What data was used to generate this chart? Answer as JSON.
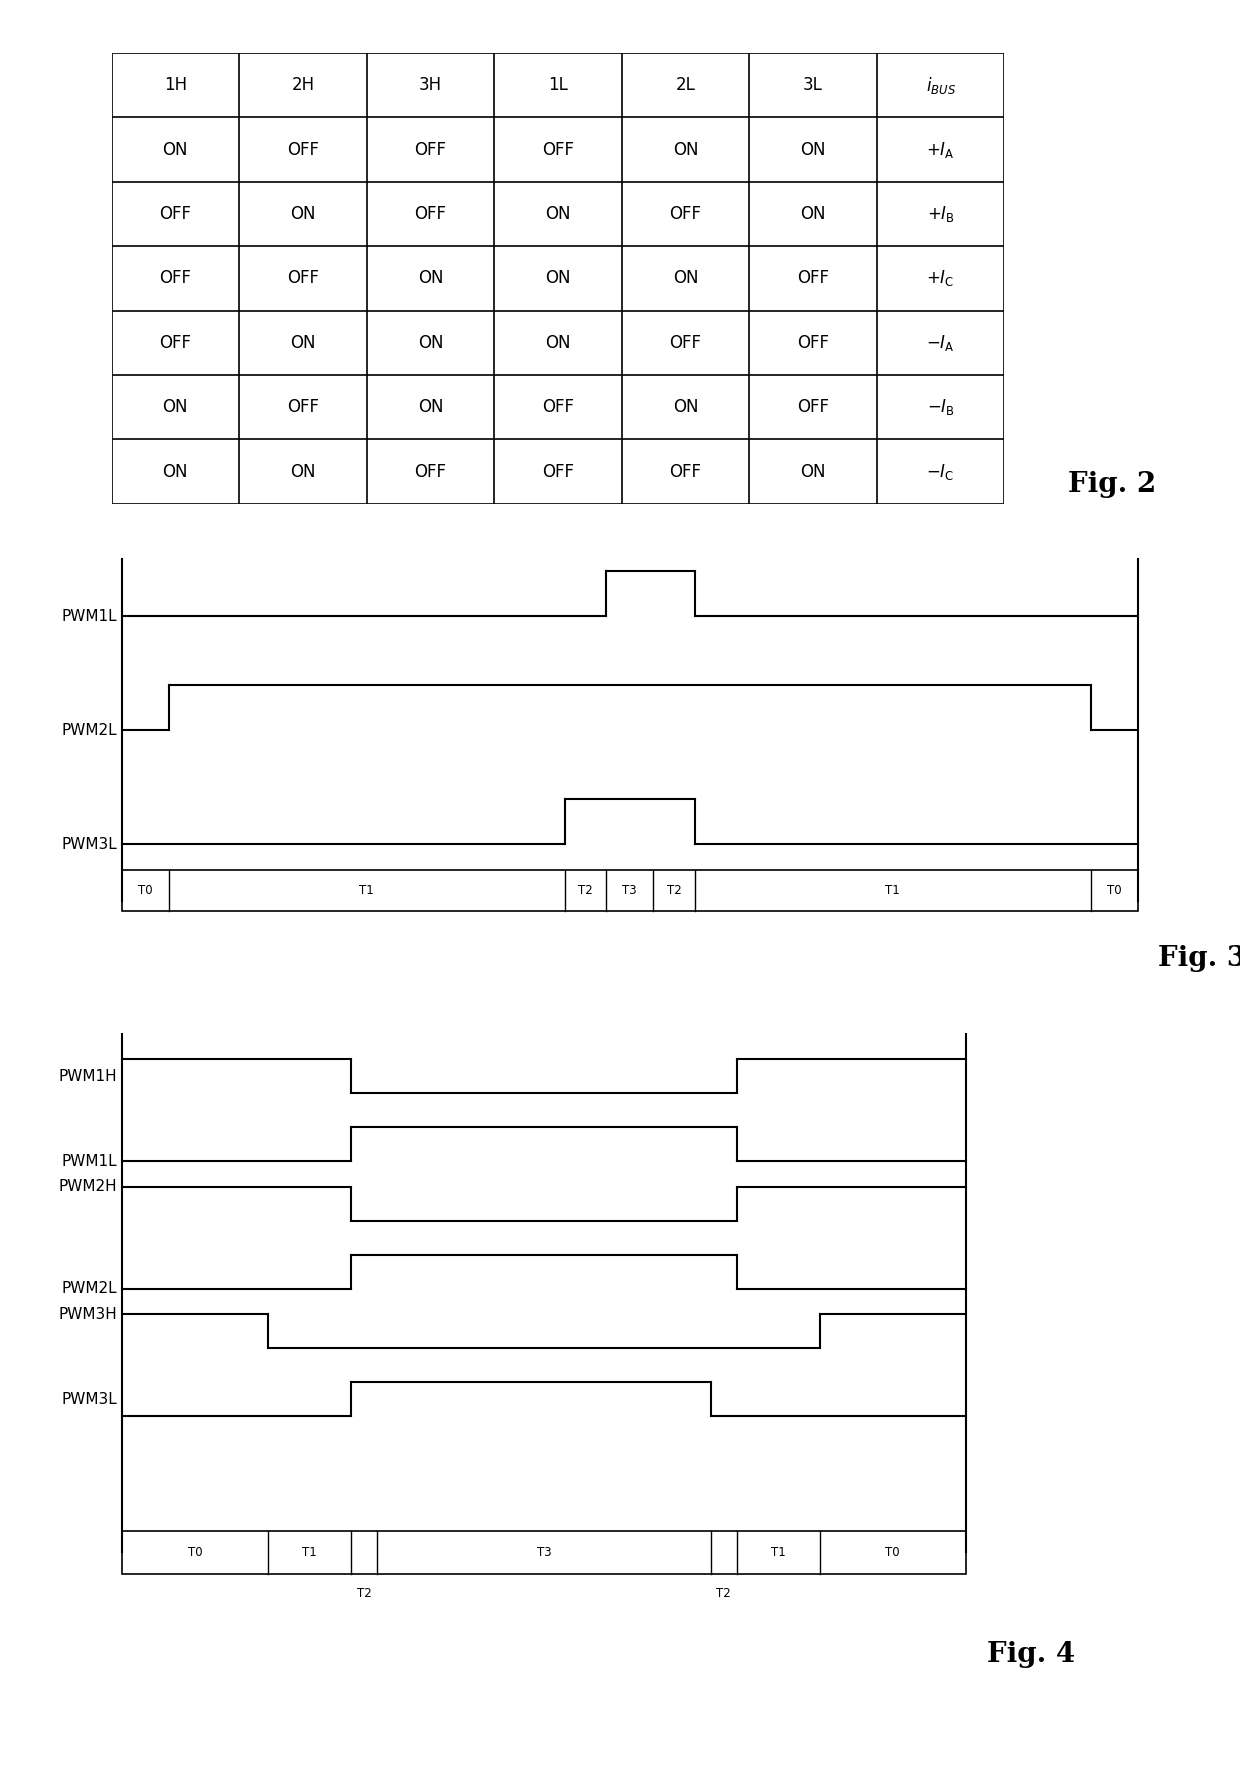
{
  "fig2_headers": [
    "1H",
    "2H",
    "3H",
    "1L",
    "2L",
    "3L"
  ],
  "fig2_last_header": "i_BUS",
  "fig2_rows": [
    [
      "ON",
      "OFF",
      "OFF",
      "OFF",
      "ON",
      "ON"
    ],
    [
      "OFF",
      "ON",
      "OFF",
      "ON",
      "OFF",
      "ON"
    ],
    [
      "OFF",
      "OFF",
      "ON",
      "ON",
      "ON",
      "OFF"
    ],
    [
      "OFF",
      "ON",
      "ON",
      "ON",
      "OFF",
      "OFF"
    ],
    [
      "ON",
      "OFF",
      "ON",
      "OFF",
      "ON",
      "OFF"
    ],
    [
      "ON",
      "ON",
      "OFF",
      "OFF",
      "OFF",
      "ON"
    ]
  ],
  "fig2_last_col": [
    "+I_A",
    "+I_B",
    "+I_C",
    "-I_A",
    "-I_B",
    "-I_C"
  ],
  "background_color": "#ffffff",
  "fig_label_fontsize": 20,
  "signal_fontsize": 11,
  "table_fontsize": 12,
  "lw_signal": 1.5,
  "lw_table": 1.2
}
